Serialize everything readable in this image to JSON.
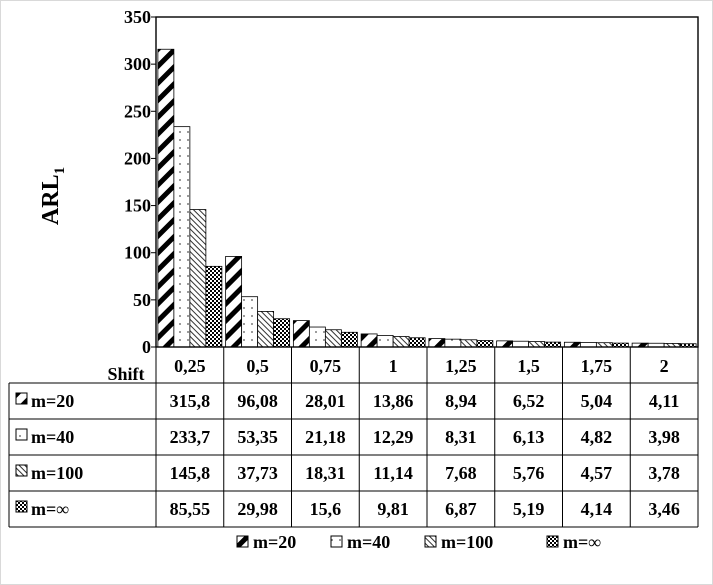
{
  "chart_data": {
    "type": "bar",
    "ylabel": "ARL",
    "ylabel_subscript": "1",
    "xlabel": "Shift",
    "ylim": [
      0,
      350
    ],
    "yticks": [
      0,
      50,
      100,
      150,
      200,
      250,
      300,
      350
    ],
    "categories": [
      "0,25",
      "0,5",
      "0,75",
      "1",
      "1,25",
      "1,5",
      "1,75",
      "2"
    ],
    "grid": false,
    "legend_placement": "bottom",
    "series": [
      {
        "name": "m=20",
        "pattern": "wide-diagonal-stripes",
        "color": "#000000",
        "values": [
          315.8,
          96.08,
          28.01,
          13.86,
          8.94,
          6.52,
          5.04,
          4.11
        ],
        "labels": [
          "315,8",
          "96,08",
          "28,01",
          "13,86",
          "8,94",
          "6,52",
          "5,04",
          "4,11"
        ]
      },
      {
        "name": "m=40",
        "pattern": "dotted",
        "color": "#000000",
        "values": [
          233.7,
          53.35,
          21.18,
          12.29,
          8.31,
          6.13,
          4.82,
          3.98
        ],
        "labels": [
          "233,7",
          "53,35",
          "21,18",
          "12,29",
          "8,31",
          "6,13",
          "4,82",
          "3,98"
        ]
      },
      {
        "name": "m=100",
        "pattern": "light-diagonal-lines",
        "color": "#000000",
        "values": [
          145.8,
          37.73,
          18.31,
          11.14,
          7.68,
          5.76,
          4.57,
          3.78
        ],
        "labels": [
          "145,8",
          "37,73",
          "18,31",
          "11,14",
          "7,68",
          "5,76",
          "4,57",
          "3,78"
        ]
      },
      {
        "name": "m=∞",
        "pattern": "checkerboard",
        "color": "#000000",
        "values": [
          85.55,
          29.98,
          15.6,
          9.81,
          6.87,
          5.19,
          4.14,
          3.46
        ],
        "labels": [
          "85,55",
          "29,98",
          "15,6",
          "9,81",
          "6,87",
          "5,19",
          "4,14",
          "3,46"
        ]
      }
    ]
  }
}
